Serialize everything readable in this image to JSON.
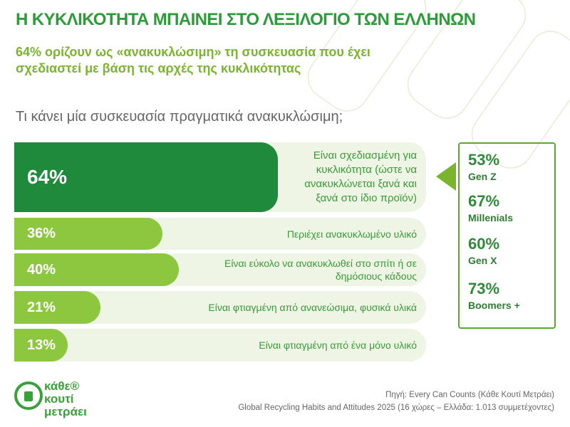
{
  "header": {
    "title": "Η ΚΥΚΛΙΚΟΤΗΤΑ ΜΠΑΙΝΕΙ ΣΤΟ ΛΕΞΙΛΟΓΙΟ ΤΩΝ ΕΛΛΗΝΩΝ",
    "subtitle": "64% ορίζουν ως «ανακυκλώσιμη» τη συσκευασία που έχει σχεδιαστεί με βάση τις αρχές της κυκλικότητας"
  },
  "chart_data": {
    "type": "bar",
    "orientation": "horizontal",
    "title": "Τι κάνει μία συσκευασία πραγματικά ανακυκλώσιμη;",
    "categories": [
      "Είναι σχεδιασμένη για κυκλικότητα (ώστε να ανακυκλώνεται ξανά και ξανά στο ίδιο προϊόν)",
      "Περιέχει ανακυκλωμένο υλικό",
      "Είναι εύκολο να ανακυκλωθεί στο σπίτι ή σε δημόσιους κάδους",
      "Είναι φτιαγμένη από ανανεώσιμα, φυσικά υλικά",
      "Είναι φτιαγμένη από ένα μόνο υλικό"
    ],
    "values": [
      64,
      36,
      40,
      21,
      13
    ],
    "value_labels": [
      "64%",
      "36%",
      "40%",
      "21%",
      "13%"
    ],
    "colors": [
      "#1f8a3b",
      "#8dc63f",
      "#8dc63f",
      "#8dc63f",
      "#8dc63f"
    ],
    "xlim": [
      0,
      100
    ]
  },
  "breakdown": {
    "categories": [
      "Gen Z",
      "Millenials",
      "Gen X",
      "Boomers +"
    ],
    "values": [
      53,
      67,
      60,
      73
    ],
    "value_labels": [
      "53%",
      "67%",
      "60%",
      "73%"
    ]
  },
  "logo": {
    "lines": [
      "κάθε®",
      "κουτί",
      "μετράει"
    ]
  },
  "source": [
    "Πηγή: Every Can Counts (Κάθε Κουτί Μετράει)",
    "Global Recycling Habits and Attitudes 2025 (16 χώρες – Ελλάδα: 1.013 συμμετέχοντες)"
  ]
}
